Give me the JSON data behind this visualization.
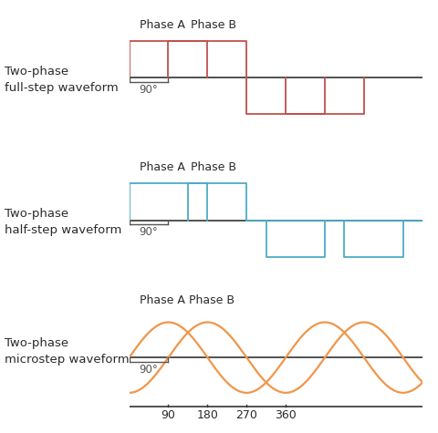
{
  "background_color": "#ffffff",
  "red_color": "#c0504d",
  "blue_color": "#4bacc6",
  "orange_color": "#f0964a",
  "axis_color": "#333333",
  "label_color": "#2a2a2a",
  "panel1_label": "Two-phase\nfull-step waveform",
  "panel2_label": "Two-phase\nhalf-step waveform",
  "panel3_label": "Two-phase\nmicrostep waveform",
  "phase_a_label": "Phase A",
  "phase_b_label": "Phase B",
  "degree_label": "90°",
  "xtick_labels": [
    "90",
    "180",
    "270",
    "360"
  ],
  "figsize": [
    4.8,
    4.75
  ],
  "dpi": 100
}
